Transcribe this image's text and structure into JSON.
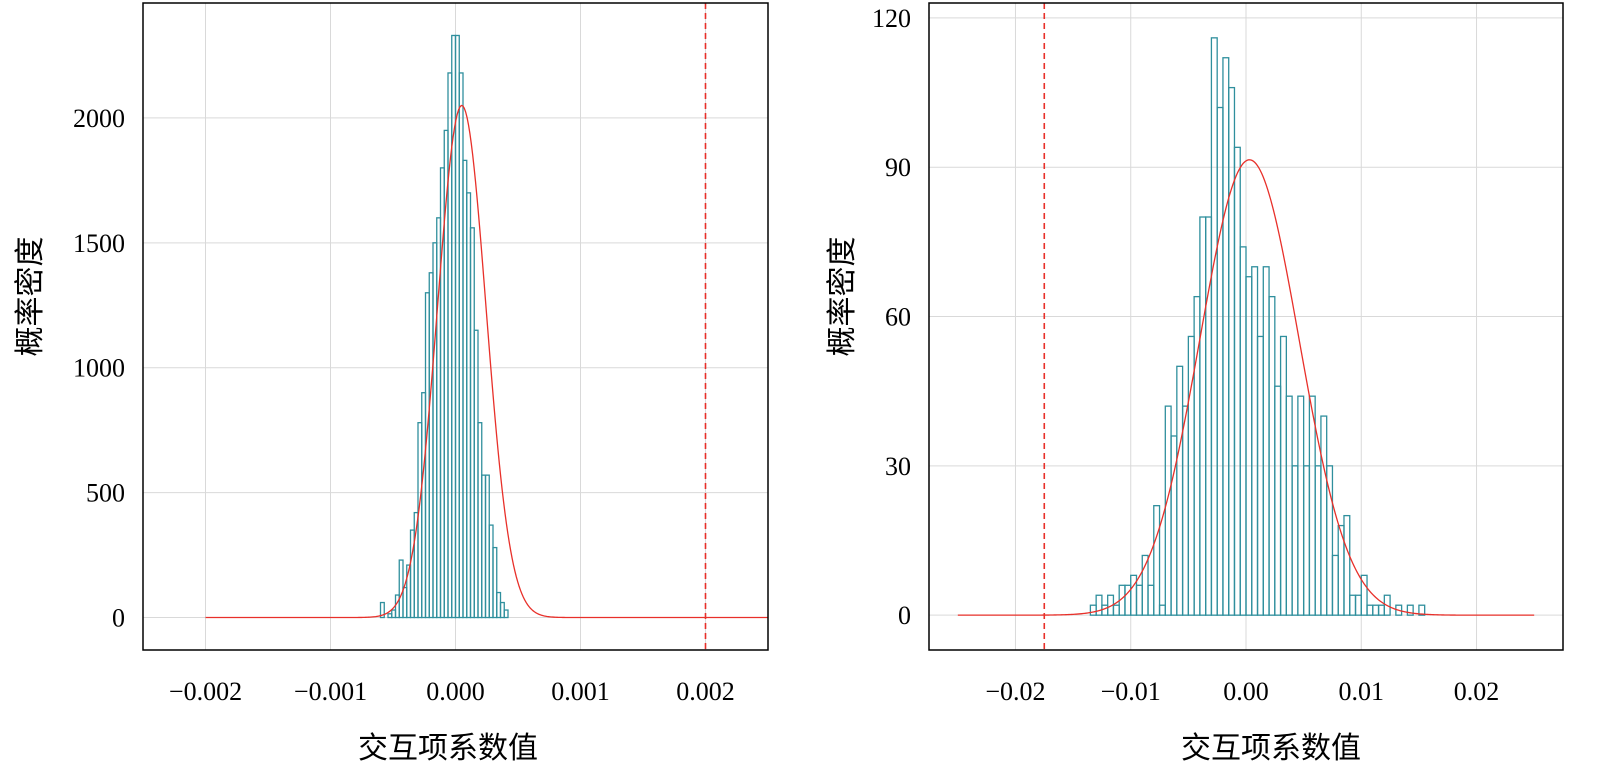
{
  "colors": {
    "bar": "#2f8f9d",
    "curve": "#e8302a",
    "grid": "#d9d9d9"
  },
  "chart_data": [
    {
      "type": "bar",
      "subtype": "histogram",
      "xlabel": "交互项系数值",
      "ylabel": "概率密度",
      "xlim": [
        -0.0025,
        0.0025
      ],
      "ylim": [
        -130,
        2460
      ],
      "xticks": [
        -0.002,
        -0.001,
        0.0,
        0.001,
        0.002
      ],
      "xtick_labels": [
        "−0.002",
        "−0.001",
        "0.000",
        "0.001",
        "0.002"
      ],
      "yticks": [
        0,
        500,
        1000,
        1500,
        2000
      ],
      "ytick_labels": [
        "0",
        "500",
        "1000",
        "1500",
        "2000"
      ],
      "grid": true,
      "bin_width": 3e-05,
      "bin_start": -0.0006,
      "bin_heights": [
        60,
        0,
        15,
        30,
        90,
        230,
        120,
        210,
        350,
        420,
        780,
        900,
        1300,
        1380,
        1500,
        1600,
        1800,
        1950,
        2180,
        2330,
        2330,
        2180,
        1830,
        1700,
        1560,
        1150,
        780,
        570,
        570,
        370,
        280,
        100,
        60,
        30
      ],
      "fit_curve": {
        "type": "normal",
        "mean": 5e-05,
        "sd": 0.000194,
        "peak": 2050,
        "range": [
          -0.002,
          0.0025
        ]
      },
      "reference_line": 0.002
    },
    {
      "type": "bar",
      "subtype": "histogram",
      "xlabel": "交互项系数值",
      "ylabel": "概率密度",
      "xlim": [
        -0.0275,
        0.0275
      ],
      "ylim": [
        -7,
        123
      ],
      "xticks": [
        -0.02,
        -0.01,
        0.0,
        0.01,
        0.02
      ],
      "xtick_labels": [
        "−0.02",
        "−0.01",
        "0.00",
        "0.01",
        "0.02"
      ],
      "yticks": [
        0,
        30,
        60,
        90,
        120
      ],
      "ytick_labels": [
        "0",
        "30",
        "60",
        "90",
        "120"
      ],
      "grid": true,
      "bin_width": 0.0005,
      "bin_start": -0.0135,
      "bin_heights": [
        2,
        4,
        2,
        4,
        2,
        6,
        6,
        8,
        6,
        12,
        6,
        22,
        2,
        42,
        36,
        50,
        42,
        56,
        64,
        80,
        80,
        116,
        102,
        112,
        106,
        94,
        74,
        68,
        70,
        56,
        70,
        64,
        46,
        56,
        44,
        30,
        44,
        30,
        44,
        30,
        40,
        30,
        12,
        18,
        20,
        4,
        4,
        8,
        2,
        2,
        2,
        4,
        0,
        2,
        0,
        2,
        0,
        2
      ],
      "fit_curve": {
        "type": "normal",
        "mean": 0.0003,
        "sd": 0.0043,
        "peak": 91.5,
        "range": [
          -0.025,
          0.025
        ]
      },
      "reference_line": -0.0175
    }
  ]
}
